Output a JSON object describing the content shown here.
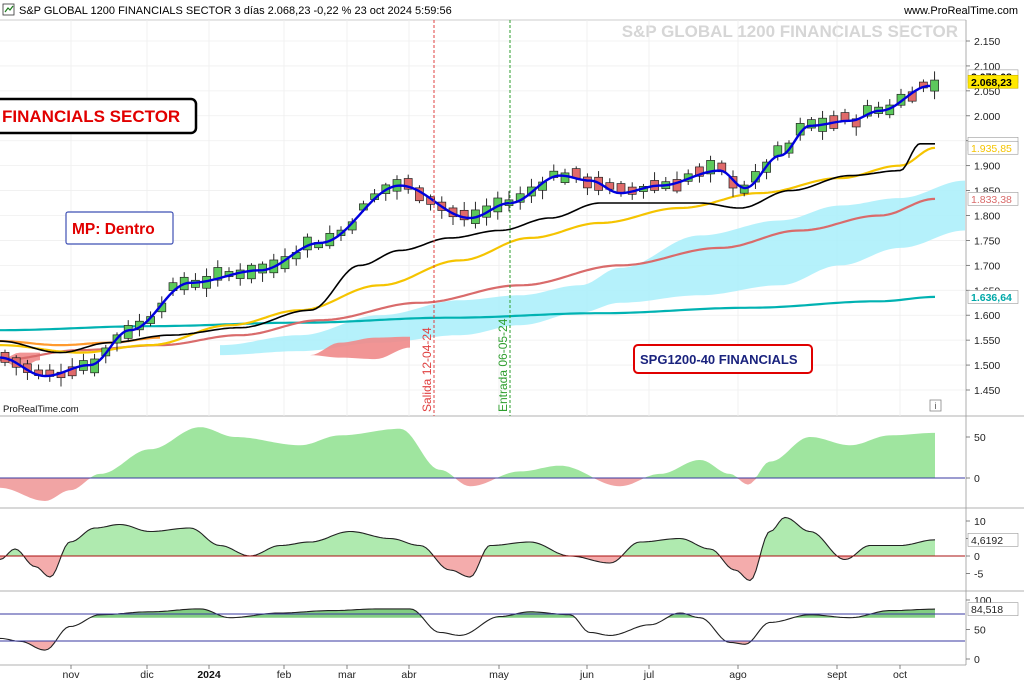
{
  "header": {
    "title": "S&P GLOBAL 1200 FINANCIALS SECTOR 3 días 2.068,23 -0,22 % 23 oct 2024 5:59:56",
    "website": "www.ProRealTime.com",
    "watermark": "S&P GLOBAL 1200 FINANCIALS SECTOR",
    "credit": "ProRealTime.com"
  },
  "annotations": {
    "box_financials": "FINANCIALS SECTOR",
    "box_mp": "MP: Dentro",
    "box_spg": "SPG1200-40 FINANCIALS",
    "line_salida": "Salida 12-04-24",
    "line_entrada": "Entrada 06-05-24",
    "colors": {
      "salida": "#e04040",
      "entrada": "#2e9e2e",
      "box_border_red": "#e00000",
      "box_border_black": "#000000"
    }
  },
  "x_axis": {
    "labels": [
      "nov",
      "dic",
      "2024",
      "feb",
      "mar",
      "abr",
      "may",
      "jun",
      "jul",
      "ago",
      "sept",
      "oct"
    ]
  },
  "y_axis_main": {
    "ticks": [
      "2.150",
      "2.100",
      "2.050",
      "2.000",
      "1.950",
      "1.900",
      "1.850",
      "1.800",
      "1.750",
      "1.700",
      "1.650",
      "1.600",
      "1.550",
      "1.500",
      "1.450"
    ]
  },
  "price_tags": [
    {
      "text": "2.079,08",
      "color": "#000000",
      "bg": "#ffffff",
      "bold": true
    },
    {
      "text": "2.068,23",
      "color": "#000000",
      "bg": "#ffe800",
      "bold": true
    },
    {
      "text": "1.943,75",
      "color": "#000000",
      "bg": "#ffffff",
      "bold": false
    },
    {
      "text": "1.935,85",
      "color": "#f5c400",
      "bg": "#ffffff",
      "bold": false
    },
    {
      "text": "1.833,38",
      "color": "#d96b6b",
      "bg": "#ffffff",
      "bold": false
    },
    {
      "text": "1.636,64",
      "color": "#00a8a8",
      "bg": "#ffffff",
      "bold": true
    }
  ],
  "panel1": {
    "ticks": [
      "50",
      "0"
    ]
  },
  "panel2": {
    "ticks": [
      "10",
      "5",
      "0",
      "-5"
    ],
    "last_value": "4,6192"
  },
  "panel3": {
    "ticks": [
      "100",
      "50",
      "0"
    ],
    "last_value": "84,518"
  },
  "chart_data": [
    {
      "type": "candlestick",
      "title": "S&P GLOBAL 1200 FINANCIALS SECTOR",
      "ylim": [
        1430,
        2175
      ],
      "x": [
        "nov",
        "dic",
        "2024",
        "feb",
        "mar",
        "abr",
        "may",
        "jun",
        "jul",
        "ago",
        "sept",
        "oct"
      ],
      "close_approx": [
        1470,
        1580,
        1700,
        1690,
        1780,
        1850,
        1790,
        1880,
        1850,
        1870,
        2010,
        2068.23
      ],
      "indicators": {
        "ma_blue_last": 2060,
        "ma_black_last": 1943.75,
        "ma_yellow_last": 1935.85,
        "ma_red_last": 1833.38,
        "ma_teal_last": 1636.64
      },
      "colors": {
        "up": "#5cc95c",
        "down": "#e06a6a",
        "ma_blue": "#0000dd",
        "ma_black": "#000000",
        "ma_yellow": "#f5c400",
        "ma_red": "#d96b6b",
        "ma_teal": "#00b2b2",
        "cloud": "#a8eefa"
      }
    },
    {
      "type": "area",
      "name": "",
      "ylim": [
        -25,
        70
      ],
      "last": 55
    },
    {
      "type": "area",
      "name": "",
      "ylim": [
        -7,
        12
      ],
      "last": 4.6192
    },
    {
      "type": "area",
      "name": "",
      "ylim": [
        0,
        105
      ],
      "last": 84.518,
      "levels": [
        70,
        30
      ]
    }
  ]
}
